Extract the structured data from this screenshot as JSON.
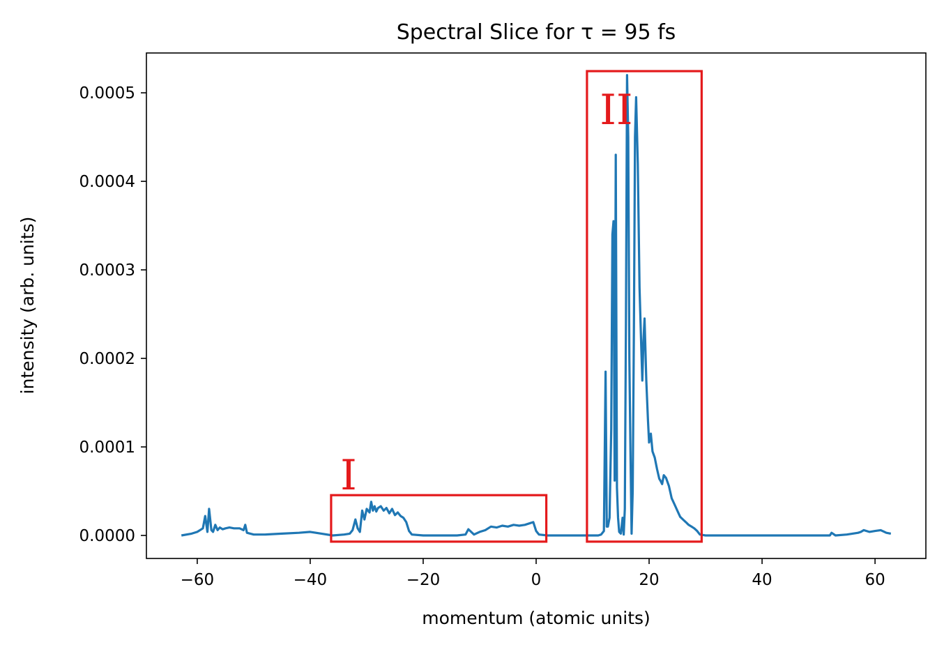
{
  "chart_data": {
    "type": "line",
    "title": "Spectral Slice for τ = 95 fs",
    "xlabel": "momentum (atomic units)",
    "ylabel": "intensity (arb. units)",
    "xlim": [
      -69,
      69
    ],
    "ylim": [
      -2.6e-05,
      0.000545
    ],
    "xticks": [
      -60,
      -40,
      -20,
      0,
      20,
      40,
      60
    ],
    "xtick_labels": [
      "−60",
      "−40",
      "−20",
      "0",
      "20",
      "40",
      "60"
    ],
    "yticks": [
      0,
      0.0001,
      0.0002,
      0.0003,
      0.0004,
      0.0005
    ],
    "ytick_labels": [
      "0.0000",
      "0.0001",
      "0.0002",
      "0.0003",
      "0.0004",
      "0.0005"
    ],
    "grid": false,
    "line_color": "#1f77b4",
    "annotation_color": "#e41a1c",
    "series": [
      {
        "x": [
          -62.8,
          -61,
          -60,
          -59,
          -58.6,
          -58.2,
          -57.9,
          -57.5,
          -57.2,
          -56.8,
          -56.4,
          -56,
          -55.5,
          -55,
          -54.3,
          -53.5,
          -52.5,
          -51.8,
          -51.5,
          -51.2,
          -50,
          -48,
          -45,
          -42,
          -40,
          -38,
          -36,
          -34,
          -33,
          -32.5,
          -32,
          -31.6,
          -31.2,
          -30.8,
          -30.4,
          -30,
          -29.5,
          -29.2,
          -28.9,
          -28.6,
          -28.3,
          -28,
          -27.5,
          -27,
          -26.5,
          -26,
          -25.5,
          -25,
          -24.5,
          -24,
          -23.5,
          -23,
          -22.5,
          -22,
          -20,
          -17,
          -14,
          -12.5,
          -12,
          -11.5,
          -11,
          -10,
          -9,
          -8,
          -7,
          -6,
          -5,
          -4,
          -3,
          -2,
          -1,
          -0.5,
          0,
          0.5,
          2,
          5,
          8,
          10,
          11,
          11.5,
          12,
          12.3,
          12.5,
          12.7,
          13,
          13.3,
          13.5,
          13.7,
          13.9,
          14.1,
          14.3,
          14.5,
          14.7,
          15,
          15.3,
          15.5,
          15.7,
          15.9,
          16.1,
          16.3,
          16.5,
          16.7,
          16.9,
          17.1,
          17.3,
          17.5,
          17.7,
          18,
          18.3,
          18.6,
          18.8,
          19,
          19.2,
          19.5,
          19.8,
          20,
          20.3,
          20.6,
          21,
          21.4,
          21.8,
          22,
          22.3,
          22.6,
          23,
          23.5,
          24,
          24.5,
          25,
          25.5,
          26,
          26.5,
          27,
          27.5,
          28,
          28.5,
          29,
          30,
          35,
          40,
          45,
          50,
          52,
          52.3,
          53,
          55,
          56,
          57,
          57.5,
          58,
          59,
          60,
          61,
          62,
          62.8
        ],
        "y": [
          0,
          2e-06,
          4e-06,
          8e-06,
          2.2e-05,
          4e-06,
          3e-05,
          6e-06,
          4e-06,
          1.2e-05,
          6e-06,
          9e-06,
          7e-06,
          8e-06,
          9e-06,
          8e-06,
          8e-06,
          6e-06,
          1.2e-05,
          3e-06,
          1e-06,
          1e-06,
          2e-06,
          3e-06,
          4e-06,
          2e-06,
          0,
          1e-06,
          2e-06,
          6e-06,
          1.8e-05,
          8e-06,
          4e-06,
          2.8e-05,
          1.8e-05,
          3e-05,
          2.6e-05,
          3.8e-05,
          2.8e-05,
          3.3e-05,
          2.7e-05,
          3.1e-05,
          3.3e-05,
          2.8e-05,
          3.1e-05,
          2.5e-05,
          3e-05,
          2.3e-05,
          2.6e-05,
          2.2e-05,
          2e-05,
          1.5e-05,
          5e-06,
          1e-06,
          0,
          0,
          0,
          1e-06,
          7e-06,
          4e-06,
          1e-06,
          4e-06,
          6e-06,
          1e-05,
          9e-06,
          1.1e-05,
          1e-05,
          1.2e-05,
          1.1e-05,
          1.2e-05,
          1.4e-05,
          1.5e-05,
          5e-06,
          1e-06,
          0,
          0,
          0,
          0,
          0,
          1e-06,
          5e-06,
          0.000185,
          1e-05,
          1e-05,
          2e-05,
          0.00012,
          0.00034,
          0.000355,
          6.2e-05,
          0.00043,
          5.4e-05,
          2e-05,
          4e-06,
          2e-06,
          2e-05,
          1e-06,
          3e-05,
          0.00024,
          0.00052,
          0.00045,
          0.0002,
          9.5e-05,
          2e-06,
          5e-05,
          0.00023,
          0.00045,
          0.000495,
          0.00042,
          0.00028,
          0.000215,
          0.000175,
          0.00022,
          0.000245,
          0.000175,
          0.00013,
          0.000105,
          0.000115,
          9.5e-05,
          8.8e-05,
          7.5e-05,
          6.4e-05,
          6.2e-05,
          5.8e-05,
          6.8e-05,
          6.5e-05,
          5.6e-05,
          4.2e-05,
          3.5e-05,
          2.8e-05,
          2.1e-05,
          1.8e-05,
          1.5e-05,
          1.2e-05,
          1e-05,
          8e-06,
          5e-06,
          1e-06,
          0,
          0,
          0,
          0,
          0,
          0,
          3e-06,
          0,
          1e-06,
          2e-06,
          3e-06,
          4e-06,
          6e-06,
          4e-06,
          5e-06,
          6e-06,
          3e-06,
          2e-06
        ]
      }
    ],
    "annotations": [
      {
        "label": "I",
        "x0": -36.3,
        "x1": 1.8,
        "y0": -7e-06,
        "y1": 4.55e-05
      },
      {
        "label": "II",
        "x0": 9,
        "x1": 29.3,
        "y0": -7e-06,
        "y1": 0.0005245
      }
    ]
  }
}
